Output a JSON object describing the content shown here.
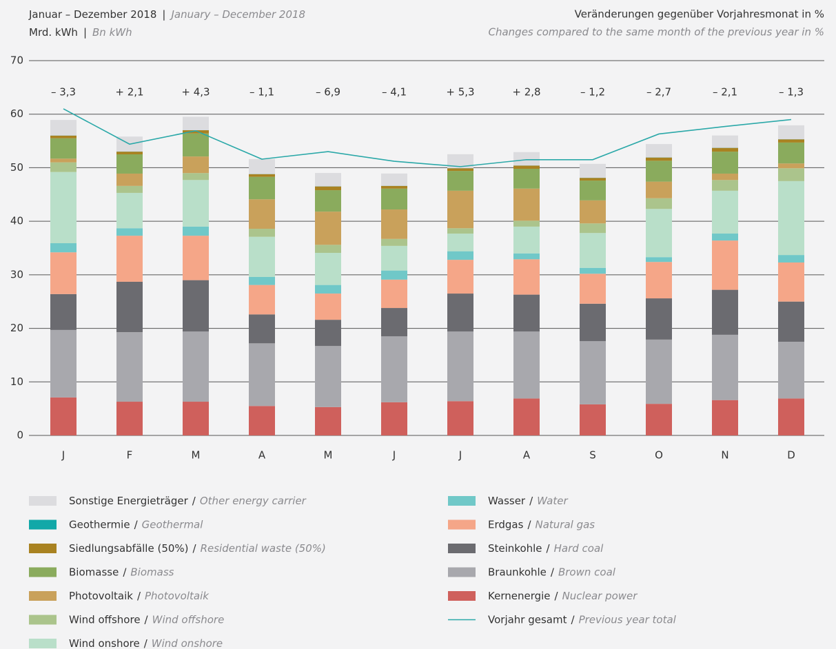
{
  "chart_data": {
    "type": "stacked_bar",
    "header": {
      "period_de": "Januar – Dezember 2018",
      "period_en": "January – December 2018",
      "unit_de": "Mrd. kWh",
      "unit_en": "Bn kWh",
      "right_de": "Veränderungen gegenüber Vorjahresmonat in %",
      "right_en": "Changes compared to the same month of the previous year in %",
      "separator": "|"
    },
    "legend_separator": "/",
    "categories": [
      "J",
      "F",
      "M",
      "A",
      "M",
      "J",
      "J",
      "A",
      "S",
      "O",
      "N",
      "D"
    ],
    "ylim": [
      0,
      70
    ],
    "yticks": [
      0,
      10,
      20,
      30,
      40,
      50,
      60,
      70
    ],
    "grid": true,
    "series": [
      {
        "name": "Kernenergie",
        "name_en": "Nuclear power",
        "color": "#cf605c",
        "values": [
          7.1,
          6.3,
          6.3,
          5.5,
          5.3,
          6.2,
          6.4,
          6.9,
          5.8,
          5.9,
          6.6,
          6.9
        ]
      },
      {
        "name": "Braunkohle",
        "name_en": "Brown coal",
        "color": "#a8a8ad",
        "values": [
          12.6,
          13.0,
          13.1,
          11.7,
          11.4,
          12.3,
          13.0,
          12.5,
          11.8,
          12.0,
          12.2,
          10.6
        ]
      },
      {
        "name": "Steinkohle",
        "name_en": "Hard coal",
        "color": "#6b6b70",
        "values": [
          6.7,
          9.4,
          9.6,
          5.4,
          4.9,
          5.3,
          7.1,
          6.9,
          7.0,
          7.7,
          8.4,
          7.5
        ]
      },
      {
        "name": "Erdgas",
        "name_en": "Natural gas",
        "color": "#f5a688",
        "values": [
          7.8,
          8.6,
          8.3,
          5.5,
          4.9,
          5.3,
          6.3,
          6.6,
          5.6,
          6.8,
          9.2,
          7.3
        ]
      },
      {
        "name": "Wasser",
        "name_en": "Water",
        "color": "#70c8c8",
        "values": [
          1.7,
          1.4,
          1.7,
          1.5,
          1.6,
          1.7,
          1.6,
          1.1,
          1.1,
          0.9,
          1.3,
          1.4
        ]
      },
      {
        "name": "Wind onshore",
        "name_en": "Wind onshore",
        "color": "#b9dfc9",
        "values": [
          13.3,
          6.6,
          8.7,
          7.5,
          6.0,
          4.6,
          3.3,
          5.0,
          6.5,
          9.0,
          8.0,
          13.8
        ]
      },
      {
        "name": "Wind offshore",
        "name_en": "Wind offshore",
        "color": "#abc48c",
        "values": [
          1.8,
          1.3,
          1.3,
          1.5,
          1.5,
          1.3,
          1.0,
          1.1,
          1.8,
          2.0,
          2.0,
          2.4
        ]
      },
      {
        "name": "Photovoltaik",
        "name_en": "Photovoltaik",
        "color": "#c9a15b",
        "values": [
          0.7,
          2.3,
          3.1,
          5.5,
          6.2,
          5.5,
          7.0,
          6.0,
          4.3,
          3.1,
          1.2,
          0.9
        ]
      },
      {
        "name": "Biomasse",
        "name_en": "Biomass",
        "color": "#8aab5d",
        "values": [
          3.8,
          3.6,
          4.3,
          4.2,
          4.0,
          3.9,
          3.7,
          3.7,
          3.7,
          3.9,
          4.1,
          3.9
        ]
      },
      {
        "name": "Siedlungsabfälle (50%)",
        "name_en": "Residential waste (50%)",
        "color": "#a98221",
        "values": [
          0.5,
          0.5,
          0.6,
          0.5,
          0.7,
          0.5,
          0.5,
          0.6,
          0.5,
          0.6,
          0.7,
          0.6
        ]
      },
      {
        "name": "Geothermie",
        "name_en": "Geothermal",
        "color": "#12a8a8",
        "values": [
          0.02,
          0.02,
          0.02,
          0.02,
          0.02,
          0.02,
          0.02,
          0.02,
          0.02,
          0.02,
          0.02,
          0.02
        ]
      },
      {
        "name": "Sonstige Energieträger",
        "name_en": "Other energy carrier",
        "color": "#dcdcdf",
        "values": [
          2.9,
          2.8,
          2.5,
          2.8,
          2.5,
          2.3,
          2.6,
          2.5,
          2.6,
          2.5,
          2.3,
          2.6
        ]
      }
    ],
    "line": {
      "name": "Vorjahr gesamt",
      "name_en": "Previous year total",
      "color": "#2aa8a8",
      "values": [
        61.0,
        54.4,
        56.9,
        51.6,
        53.0,
        51.2,
        50.2,
        51.5,
        51.5,
        56.3,
        57.7,
        59.0
      ]
    },
    "changes": {
      "values": [
        -3.3,
        2.1,
        4.3,
        -1.1,
        -6.9,
        -4.1,
        5.3,
        2.8,
        -1.2,
        -2.7,
        -2.1,
        -1.3
      ],
      "value_labels": [
        "– 3,3",
        "+ 2,1",
        "+ 4,3",
        "– 1,1",
        "– 6,9",
        "– 4,1",
        "+ 5,3",
        "+ 2,8",
        "– 1,2",
        "– 2,7",
        "– 2,1",
        "– 1,3"
      ]
    }
  }
}
